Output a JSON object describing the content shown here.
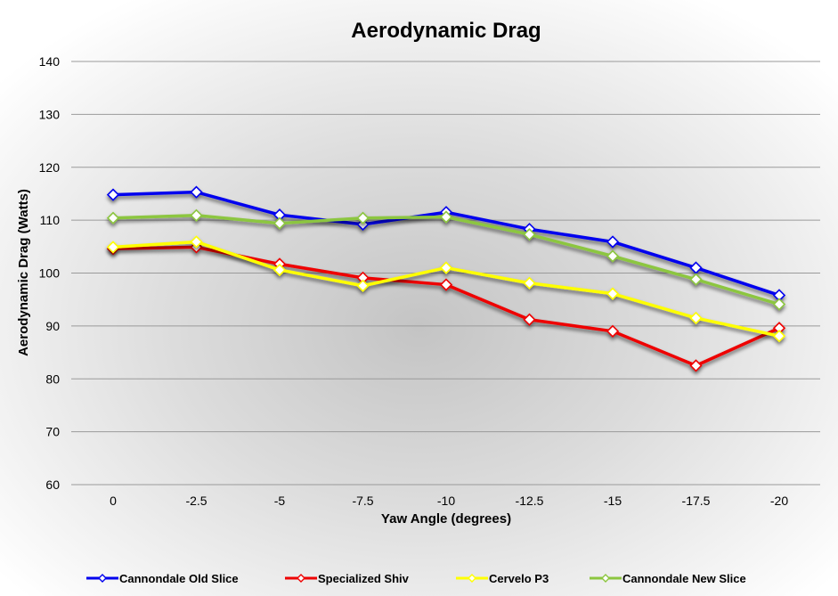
{
  "chart_data": {
    "type": "line",
    "title": "Aerodynamic Drag",
    "xlabel": "Yaw Angle (degrees)",
    "ylabel": "Aerodynamic Drag (Watts)",
    "categories": [
      "0",
      "-2.5",
      "-5",
      "-7.5",
      "-10",
      "-12.5",
      "-15",
      "-17.5",
      "-20"
    ],
    "ylim": [
      60,
      140
    ],
    "yticks": [
      60,
      70,
      80,
      90,
      100,
      110,
      120,
      130,
      140
    ],
    "grid": true,
    "legend_position": "bottom",
    "series": [
      {
        "name": "Cannondale Old Slice",
        "color": "#0000ee",
        "values": [
          114.8,
          115.3,
          111.0,
          109.2,
          111.5,
          108.3,
          105.9,
          101.0,
          95.8
        ]
      },
      {
        "name": "Specialized Shiv",
        "color": "#ee0000",
        "values": [
          104.6,
          104.9,
          101.7,
          99.1,
          97.8,
          91.2,
          89.0,
          82.5,
          89.6
        ]
      },
      {
        "name": "Cervelo P3",
        "color": "#ffff00",
        "values": [
          104.9,
          105.9,
          100.6,
          97.6,
          101.0,
          98.1,
          96.1,
          91.5,
          88.1
        ]
      },
      {
        "name": "Cannondale New Slice",
        "color": "#8cc63f",
        "values": [
          110.4,
          110.9,
          109.4,
          110.4,
          110.6,
          107.3,
          103.2,
          98.8,
          94.1
        ]
      }
    ]
  }
}
